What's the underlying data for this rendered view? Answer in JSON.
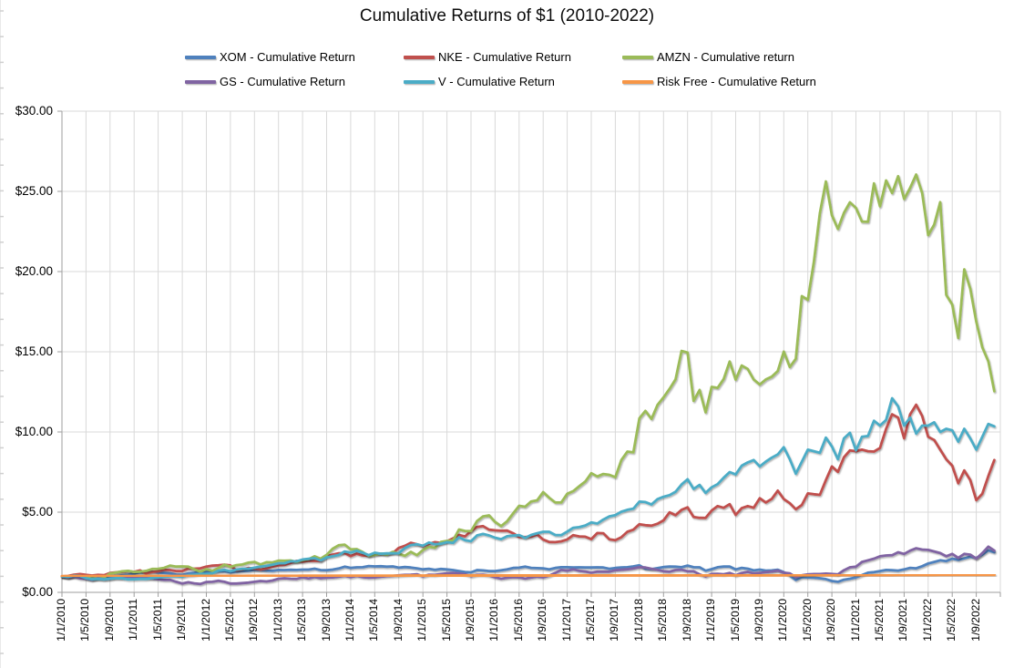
{
  "chart_data": {
    "type": "line",
    "title": "Cumulative Returns of $1 (2010-2022)",
    "xlabel": "",
    "ylabel": "",
    "ylim": [
      0,
      30
    ],
    "y_tick_values": [
      0,
      5,
      10,
      15,
      20,
      25,
      30
    ],
    "y_tick_labels": [
      "$0.00",
      "$5.00",
      "$10.00",
      "$15.00",
      "$20.00",
      "$25.00",
      "$30.00"
    ],
    "grid": true,
    "legend_position": "top",
    "x_unit": "month",
    "months_total": 156,
    "x_tick_interval_months": 4,
    "x_tick_labels": [
      "1/1/2010",
      "1/5/2010",
      "1/9/2010",
      "1/1/2011",
      "1/5/2011",
      "1/9/2011",
      "1/1/2012",
      "1/5/2012",
      "1/9/2012",
      "1/1/2013",
      "1/5/2013",
      "1/9/2013",
      "1/1/2014",
      "1/5/2014",
      "1/9/2014",
      "1/1/2015",
      "1/5/2015",
      "1/9/2015",
      "1/1/2016",
      "1/5/2016",
      "1/9/2016",
      "1/1/2017",
      "1/5/2017",
      "1/9/2017",
      "1/1/2018",
      "1/5/2018",
      "1/9/2018",
      "1/1/2019",
      "1/5/2019",
      "1/9/2019",
      "1/1/2020",
      "1/5/2020",
      "1/9/2020",
      "1/1/2021",
      "1/5/2021",
      "1/9/2021",
      "1/1/2022",
      "1/5/2022",
      "1/9/2022"
    ],
    "series": [
      {
        "key": "xom",
        "name": "XOM - Cumulative Return",
        "color": "#4F81BD",
        "values": [
          1.0,
          0.96,
          1.0,
          1.02,
          0.93,
          0.88,
          0.92,
          0.93,
          0.97,
          1.01,
          1.06,
          1.1,
          1.18,
          1.25,
          1.24,
          1.3,
          1.24,
          1.21,
          1.19,
          1.11,
          1.09,
          1.18,
          1.22,
          1.28,
          1.27,
          1.31,
          1.32,
          1.32,
          1.25,
          1.3,
          1.33,
          1.34,
          1.4,
          1.39,
          1.36,
          1.34,
          1.4,
          1.39,
          1.41,
          1.4,
          1.42,
          1.42,
          1.48,
          1.39,
          1.38,
          1.42,
          1.49,
          1.6,
          1.53,
          1.56,
          1.57,
          1.64,
          1.62,
          1.63,
          1.6,
          1.62,
          1.54,
          1.58,
          1.55,
          1.5,
          1.44,
          1.47,
          1.41,
          1.46,
          1.43,
          1.39,
          1.33,
          1.27,
          1.25,
          1.39,
          1.37,
          1.33,
          1.33,
          1.38,
          1.44,
          1.52,
          1.54,
          1.61,
          1.53,
          1.51,
          1.5,
          1.44,
          1.52,
          1.57,
          1.57,
          1.55,
          1.56,
          1.55,
          1.55,
          1.56,
          1.55,
          1.47,
          1.52,
          1.55,
          1.57,
          1.62,
          1.69,
          1.47,
          1.45,
          1.51,
          1.58,
          1.61,
          1.6,
          1.57,
          1.67,
          1.57,
          1.56,
          1.35,
          1.45,
          1.57,
          1.61,
          1.61,
          1.43,
          1.53,
          1.48,
          1.37,
          1.42,
          1.36,
          1.37,
          1.41,
          1.26,
          1.04,
          0.77,
          0.95,
          0.93,
          0.92,
          0.88,
          0.83,
          0.71,
          0.66,
          0.79,
          0.85,
          0.93,
          1.08,
          1.23,
          1.26,
          1.33,
          1.4,
          1.38,
          1.36,
          1.43,
          1.53,
          1.5,
          1.63,
          1.8,
          1.9,
          2.0,
          1.95,
          2.1,
          2.02,
          2.12,
          2.22,
          2.15,
          2.35,
          2.62,
          2.5
        ]
      },
      {
        "key": "nke",
        "name": "NKE - Cumulative Return",
        "color": "#C0504D",
        "values": [
          1.0,
          1.02,
          1.1,
          1.14,
          1.09,
          1.05,
          1.09,
          1.07,
          1.21,
          1.25,
          1.29,
          1.33,
          1.28,
          1.37,
          1.18,
          1.27,
          1.31,
          1.4,
          1.39,
          1.33,
          1.33,
          1.49,
          1.48,
          1.5,
          1.61,
          1.67,
          1.69,
          1.72,
          1.68,
          1.37,
          1.43,
          1.52,
          1.48,
          1.42,
          1.49,
          1.6,
          1.68,
          1.71,
          1.83,
          1.96,
          1.91,
          1.97,
          1.96,
          1.96,
          2.25,
          2.35,
          2.44,
          2.45,
          2.26,
          2.41,
          2.3,
          2.27,
          2.39,
          2.41,
          2.41,
          2.45,
          2.77,
          2.9,
          3.09,
          3.0,
          2.88,
          3.02,
          3.13,
          3.08,
          3.19,
          3.37,
          3.58,
          3.49,
          3.83,
          4.08,
          4.13,
          3.91,
          3.87,
          3.84,
          3.85,
          3.69,
          3.45,
          3.45,
          3.47,
          3.61,
          3.29,
          3.14,
          3.13,
          3.18,
          3.3,
          3.57,
          3.49,
          3.47,
          3.32,
          3.7,
          3.69,
          3.31,
          3.25,
          3.44,
          3.78,
          3.91,
          4.25,
          4.19,
          4.16,
          4.28,
          4.49,
          4.99,
          4.81,
          5.15,
          5.3,
          4.7,
          4.65,
          4.64,
          5.1,
          5.38,
          5.27,
          5.5,
          4.83,
          5.25,
          5.38,
          5.28,
          5.87,
          5.6,
          5.83,
          6.34,
          5.82,
          5.56,
          5.18,
          5.45,
          6.17,
          6.12,
          6.08,
          7.0,
          7.85,
          7.51,
          8.42,
          8.85,
          8.8,
          8.9,
          8.8,
          8.78,
          9.0,
          10.2,
          11.1,
          10.9,
          9.6,
          11.1,
          11.7,
          11.0,
          9.7,
          9.5,
          8.9,
          8.3,
          7.9,
          6.8,
          7.6,
          7.0,
          5.75,
          6.15,
          7.25,
          8.25
        ]
      },
      {
        "key": "amzn",
        "name": "AMZN - Cumulative return",
        "color": "#9BBB59",
        "values": [
          1.0,
          0.92,
          1.02,
          1.03,
          0.94,
          0.85,
          0.9,
          0.94,
          1.18,
          1.24,
          1.31,
          1.34,
          1.27,
          1.29,
          1.34,
          1.46,
          1.47,
          1.53,
          1.67,
          1.61,
          1.62,
          1.6,
          1.44,
          1.29,
          1.45,
          1.34,
          1.51,
          1.73,
          1.59,
          1.7,
          1.74,
          1.85,
          1.9,
          1.74,
          1.88,
          1.87,
          1.98,
          1.97,
          1.99,
          1.9,
          2.01,
          2.07,
          2.25,
          2.1,
          2.34,
          2.72,
          2.94,
          2.98,
          2.68,
          2.7,
          2.51,
          2.27,
          2.33,
          2.42,
          2.34,
          2.53,
          2.41,
          2.28,
          2.53,
          2.32,
          2.64,
          2.84,
          2.78,
          3.15,
          3.21,
          3.24,
          3.92,
          3.83,
          3.82,
          4.45,
          4.74,
          4.8,
          4.39,
          4.13,
          4.43,
          4.92,
          5.4,
          5.34,
          5.67,
          5.74,
          6.25,
          5.9,
          5.61,
          5.6,
          6.15,
          6.31,
          6.62,
          6.91,
          7.43,
          7.23,
          7.38,
          7.33,
          7.18,
          8.25,
          8.78,
          8.73,
          10.85,
          11.31,
          10.81,
          11.69,
          12.16,
          12.69,
          13.28,
          15.05,
          14.95,
          11.94,
          12.62,
          11.22,
          12.81,
          12.75,
          13.3,
          14.39,
          13.26,
          14.14,
          13.93,
          13.27,
          12.96,
          13.27,
          13.45,
          13.8,
          15.01,
          14.05,
          14.56,
          18.47,
          18.24,
          20.6,
          23.64,
          25.62,
          23.51,
          22.66,
          23.66,
          24.32,
          23.97,
          23.12,
          23.1,
          25.5,
          24.07,
          25.68,
          24.9,
          25.95,
          24.53,
          25.22,
          26.05,
          24.9,
          22.27,
          22.93,
          24.33,
          18.55,
          17.95,
          15.86,
          20.14,
          18.93,
          16.87,
          15.28,
          14.41,
          12.54
        ]
      },
      {
        "key": "gs",
        "name": "GS - Cumulative Return",
        "color": "#8064A2",
        "values": [
          1.0,
          0.93,
          0.99,
          0.87,
          0.85,
          0.78,
          0.88,
          0.82,
          0.85,
          0.93,
          0.9,
          0.97,
          0.95,
          0.94,
          0.92,
          0.87,
          0.82,
          0.77,
          0.78,
          0.66,
          0.55,
          0.63,
          0.56,
          0.52,
          0.65,
          0.66,
          0.72,
          0.66,
          0.55,
          0.55,
          0.58,
          0.61,
          0.66,
          0.71,
          0.68,
          0.74,
          0.85,
          0.88,
          0.85,
          0.84,
          0.94,
          0.87,
          0.95,
          0.88,
          0.92,
          0.93,
          0.97,
          1.03,
          0.95,
          1.02,
          0.95,
          0.92,
          0.93,
          0.97,
          1.01,
          1.03,
          1.06,
          1.09,
          1.1,
          1.13,
          1.0,
          1.1,
          1.09,
          1.14,
          1.18,
          1.21,
          1.19,
          1.13,
          1.01,
          1.09,
          1.1,
          1.05,
          0.94,
          0.85,
          0.91,
          0.95,
          0.93,
          0.86,
          0.92,
          0.98,
          0.94,
          1.04,
          1.21,
          1.4,
          1.35,
          1.44,
          1.34,
          1.3,
          1.23,
          1.29,
          1.29,
          1.29,
          1.38,
          1.41,
          1.44,
          1.49,
          1.57,
          1.55,
          1.47,
          1.4,
          1.32,
          1.29,
          1.39,
          1.41,
          1.32,
          1.31,
          1.12,
          0.99,
          1.15,
          1.16,
          1.13,
          1.21,
          1.07,
          1.21,
          1.28,
          1.18,
          1.21,
          1.26,
          1.3,
          1.36,
          1.23,
          1.18,
          0.95,
          1.06,
          1.12,
          1.14,
          1.14,
          1.17,
          1.15,
          1.12,
          1.38,
          1.56,
          1.6,
          1.9,
          2.0,
          2.1,
          2.25,
          2.3,
          2.32,
          2.5,
          2.4,
          2.6,
          2.75,
          2.67,
          2.65,
          2.55,
          2.45,
          2.25,
          2.4,
          2.15,
          2.4,
          2.35,
          2.1,
          2.45,
          2.85,
          2.6
        ]
      },
      {
        "key": "v",
        "name": "V - Cumulative Return",
        "color": "#4BACC6",
        "values": [
          1.0,
          0.97,
          1.04,
          1.03,
          0.88,
          0.81,
          0.84,
          0.81,
          0.85,
          0.89,
          0.88,
          0.81,
          0.82,
          0.84,
          0.84,
          0.89,
          0.93,
          0.96,
          1.0,
          1.01,
          0.98,
          1.07,
          1.09,
          1.16,
          1.15,
          1.19,
          1.35,
          1.41,
          1.32,
          1.42,
          1.47,
          1.47,
          1.54,
          1.6,
          1.65,
          1.73,
          1.81,
          1.82,
          1.94,
          1.93,
          2.05,
          2.09,
          2.13,
          1.99,
          2.18,
          2.25,
          2.33,
          2.55,
          2.48,
          2.59,
          2.47,
          2.32,
          2.47,
          2.41,
          2.43,
          2.44,
          2.44,
          2.76,
          2.95,
          3.0,
          2.91,
          3.11,
          3.0,
          3.03,
          3.13,
          3.08,
          3.44,
          3.25,
          3.19,
          3.55,
          3.64,
          3.55,
          3.41,
          3.32,
          3.5,
          3.54,
          3.57,
          3.4,
          3.58,
          3.69,
          3.78,
          3.78,
          3.58,
          3.57,
          3.79,
          4.03,
          4.07,
          4.17,
          4.36,
          4.29,
          4.54,
          4.74,
          4.82,
          5.03,
          5.15,
          5.22,
          5.66,
          5.63,
          5.48,
          5.81,
          5.96,
          6.06,
          6.27,
          6.73,
          7.05,
          6.45,
          6.7,
          6.2,
          6.55,
          6.75,
          7.15,
          7.5,
          7.35,
          7.9,
          8.1,
          8.25,
          7.85,
          8.15,
          8.4,
          8.6,
          9.05,
          8.3,
          7.4,
          8.15,
          8.9,
          8.8,
          8.7,
          9.65,
          9.1,
          8.3,
          9.6,
          9.95,
          8.85,
          9.7,
          9.75,
          10.7,
          10.4,
          10.75,
          12.1,
          11.6,
          10.4,
          10.9,
          9.9,
          10.4,
          10.4,
          10.6,
          10.0,
          10.2,
          10.1,
          9.4,
          10.2,
          9.6,
          8.9,
          9.7,
          10.5,
          10.35
        ]
      },
      {
        "key": "risk-free",
        "name": "Risk Free - Cumulative Return",
        "color": "#F79646",
        "values": [
          1.0,
          1.001,
          1.001,
          1.002,
          1.003,
          1.003,
          1.004,
          1.004,
          1.005,
          1.006,
          1.006,
          1.007,
          1.008,
          1.008,
          1.009,
          1.01,
          1.01,
          1.011,
          1.012,
          1.012,
          1.013,
          1.013,
          1.014,
          1.015,
          1.015,
          1.016,
          1.017,
          1.017,
          1.018,
          1.019,
          1.019,
          1.02,
          1.021,
          1.021,
          1.022,
          1.022,
          1.023,
          1.024,
          1.024,
          1.025,
          1.026,
          1.026,
          1.027,
          1.028,
          1.028,
          1.029,
          1.029,
          1.03,
          1.031,
          1.031,
          1.032,
          1.033,
          1.033,
          1.034,
          1.035,
          1.035,
          1.036,
          1.037,
          1.037,
          1.038,
          1.038,
          1.039,
          1.04,
          1.04,
          1.041,
          1.042,
          1.042,
          1.043,
          1.044,
          1.044,
          1.045,
          1.046,
          1.046,
          1.047,
          1.047,
          1.048,
          1.049,
          1.049,
          1.05,
          1.051,
          1.051,
          1.052,
          1.053,
          1.053,
          1.054,
          1.054,
          1.055,
          1.056,
          1.056,
          1.057,
          1.058,
          1.058,
          1.059,
          1.06,
          1.06,
          1.061,
          1.062,
          1.062,
          1.063,
          1.063,
          1.064,
          1.065,
          1.065,
          1.066,
          1.067,
          1.067,
          1.068,
          1.069,
          1.069,
          1.07,
          1.071,
          1.071,
          1.072,
          1.072,
          1.073,
          1.074,
          1.074,
          1.075,
          1.076,
          1.076,
          1.077,
          1.078,
          1.078,
          1.079,
          1.079,
          1.08,
          1.081,
          1.081,
          1.082,
          1.083,
          1.083,
          1.084,
          1.085,
          1.085,
          1.086,
          1.087,
          1.087,
          1.088,
          1.088,
          1.089,
          1.09,
          1.09,
          1.091,
          1.092,
          1.092,
          1.093,
          1.094,
          1.094,
          1.095,
          1.096,
          1.096,
          1.097,
          1.097,
          1.098,
          1.099,
          1.099
        ]
      }
    ],
    "colors": {
      "gridline": "#d9d9d9",
      "axis": "#9e9e9e",
      "label_text": "#000000",
      "background": "#ffffff"
    }
  }
}
